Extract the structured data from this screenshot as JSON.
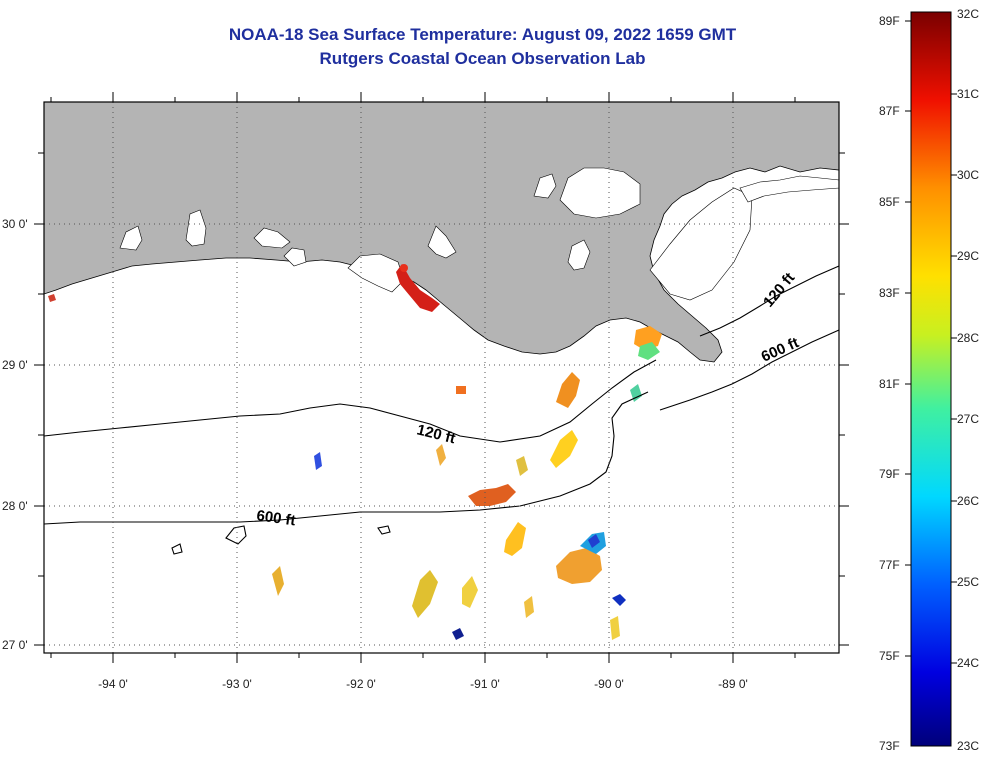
{
  "header": {
    "title": "NOAA-18 Sea Surface Temperature:  August 09, 2022 1659 GMT",
    "subtitle": "Rutgers Coastal Ocean Observation Lab"
  },
  "map": {
    "lat_labels": [
      "30 0'",
      "29 0'",
      "28 0'",
      "27 0'"
    ],
    "lon_labels": [
      "-94 0'",
      "-93 0'",
      "-92 0'",
      "-91 0'",
      "-90 0'",
      "-89 0'"
    ],
    "contours": [
      {
        "label": "120 ft",
        "depth_ft": 120
      },
      {
        "label": "600 ft",
        "depth_ft": 600
      },
      {
        "label": "120 ft",
        "depth_ft": 120
      },
      {
        "label": "600 ft",
        "depth_ft": 600
      }
    ],
    "colors": {
      "land": "#b4b4b4",
      "ocean": "#ffffff",
      "title": "#1f2f9e"
    }
  },
  "colorbar": {
    "fahrenheit": [
      "89F",
      "87F",
      "85F",
      "83F",
      "81F",
      "79F",
      "77F",
      "75F",
      "73F"
    ],
    "celsius": [
      "32C",
      "31C",
      "30C",
      "29C",
      "28C",
      "27C",
      "26C",
      "25C",
      "24C",
      "23C"
    ],
    "min_c": 23,
    "max_c": 32
  }
}
